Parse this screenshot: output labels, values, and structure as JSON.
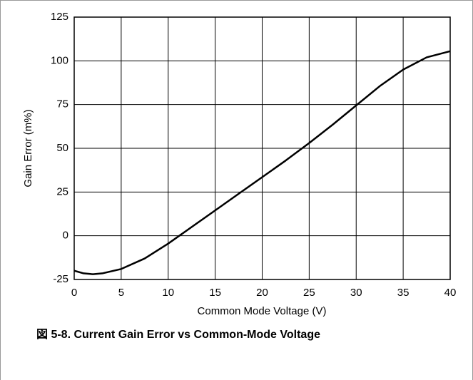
{
  "chart_data": {
    "type": "line",
    "caption": "図 5-8. Current Gain Error vs Common-Mode Voltage",
    "xlabel": "Common Mode Voltage (V)",
    "ylabel": "Gain Error (m%)",
    "x": [
      0,
      1,
      2,
      3,
      5,
      7.5,
      10,
      12.5,
      15,
      17.5,
      20,
      22.5,
      25,
      27.5,
      30,
      32.5,
      35,
      37.5,
      40
    ],
    "series": [
      {
        "name": null,
        "color": "#000000",
        "values": [
          -20,
          -21.5,
          -22,
          -21.5,
          -19,
          -13,
          -4.5,
          5,
          14.5,
          24,
          33.5,
          43,
          53,
          63.5,
          74.5,
          85.5,
          95,
          102,
          105.5
        ]
      }
    ],
    "xlim": [
      0,
      40
    ],
    "xticks": [
      0,
      5,
      10,
      15,
      20,
      25,
      30,
      35,
      40
    ],
    "ylim": [
      -25,
      125
    ],
    "yticks": [
      -25,
      0,
      25,
      50,
      75,
      100,
      125
    ],
    "grid": true
  }
}
